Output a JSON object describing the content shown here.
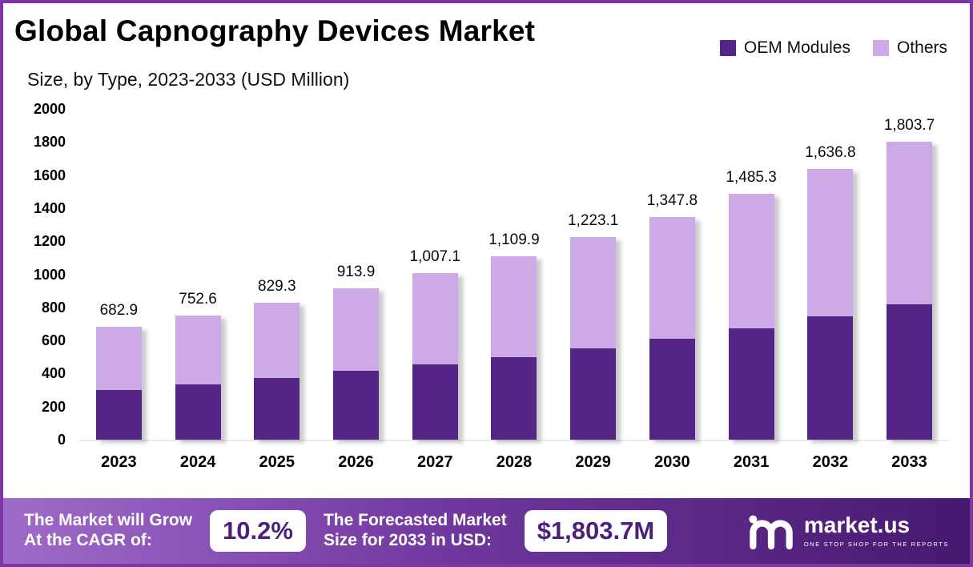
{
  "title": "Global Capnography Devices Market",
  "subtitle": "Size, by Type, 2023-2033 (USD Million)",
  "legend": [
    {
      "label": "OEM Modules",
      "color": "#552487"
    },
    {
      "label": "Others",
      "color": "#cda9e6"
    }
  ],
  "chart_data": {
    "type": "bar",
    "stacked": true,
    "title": "Global Capnography Devices Market Size, by Type, 2023-2033 (USD Million)",
    "categories": [
      "2023",
      "2024",
      "2025",
      "2026",
      "2027",
      "2028",
      "2029",
      "2030",
      "2031",
      "2032",
      "2033"
    ],
    "series": [
      {
        "name": "OEM Modules",
        "color": "#552487",
        "values": [
          300,
          335,
          375,
          415,
          455,
          500,
          550,
          610,
          675,
          745,
          820
        ]
      },
      {
        "name": "Others",
        "color": "#cda9e6",
        "values": [
          382.9,
          417.6,
          454.3,
          498.9,
          552.1,
          609.9,
          673.1,
          737.8,
          810.3,
          891.8,
          983.7
        ]
      }
    ],
    "totals": [
      682.9,
      752.6,
      829.3,
      913.9,
      1007.1,
      1109.9,
      1223.1,
      1347.8,
      1485.3,
      1636.8,
      1803.7
    ],
    "total_labels": [
      "682.9",
      "752.6",
      "829.3",
      "913.9",
      "1,007.1",
      "1,109.9",
      "1,223.1",
      "1,347.8",
      "1,485.3",
      "1,636.8",
      "1,803.7"
    ],
    "ylim": [
      0,
      2000
    ],
    "ytick_step": 200,
    "yticks": [
      "0",
      "200",
      "400",
      "600",
      "800",
      "1000",
      "1200",
      "1400",
      "1600",
      "1800",
      "2000"
    ],
    "grid": false,
    "legend_position": "top-right"
  },
  "footer": {
    "cagr_label": "The Market will Grow\nAt the CAGR of:",
    "cagr_value": "10.2%",
    "forecast_label": "The Forecasted Market\nSize for 2033 in USD:",
    "forecast_value": "$1,803.7M",
    "brand": "market.us",
    "brand_tagline": "ONE STOP SHOP FOR THE REPORTS"
  }
}
